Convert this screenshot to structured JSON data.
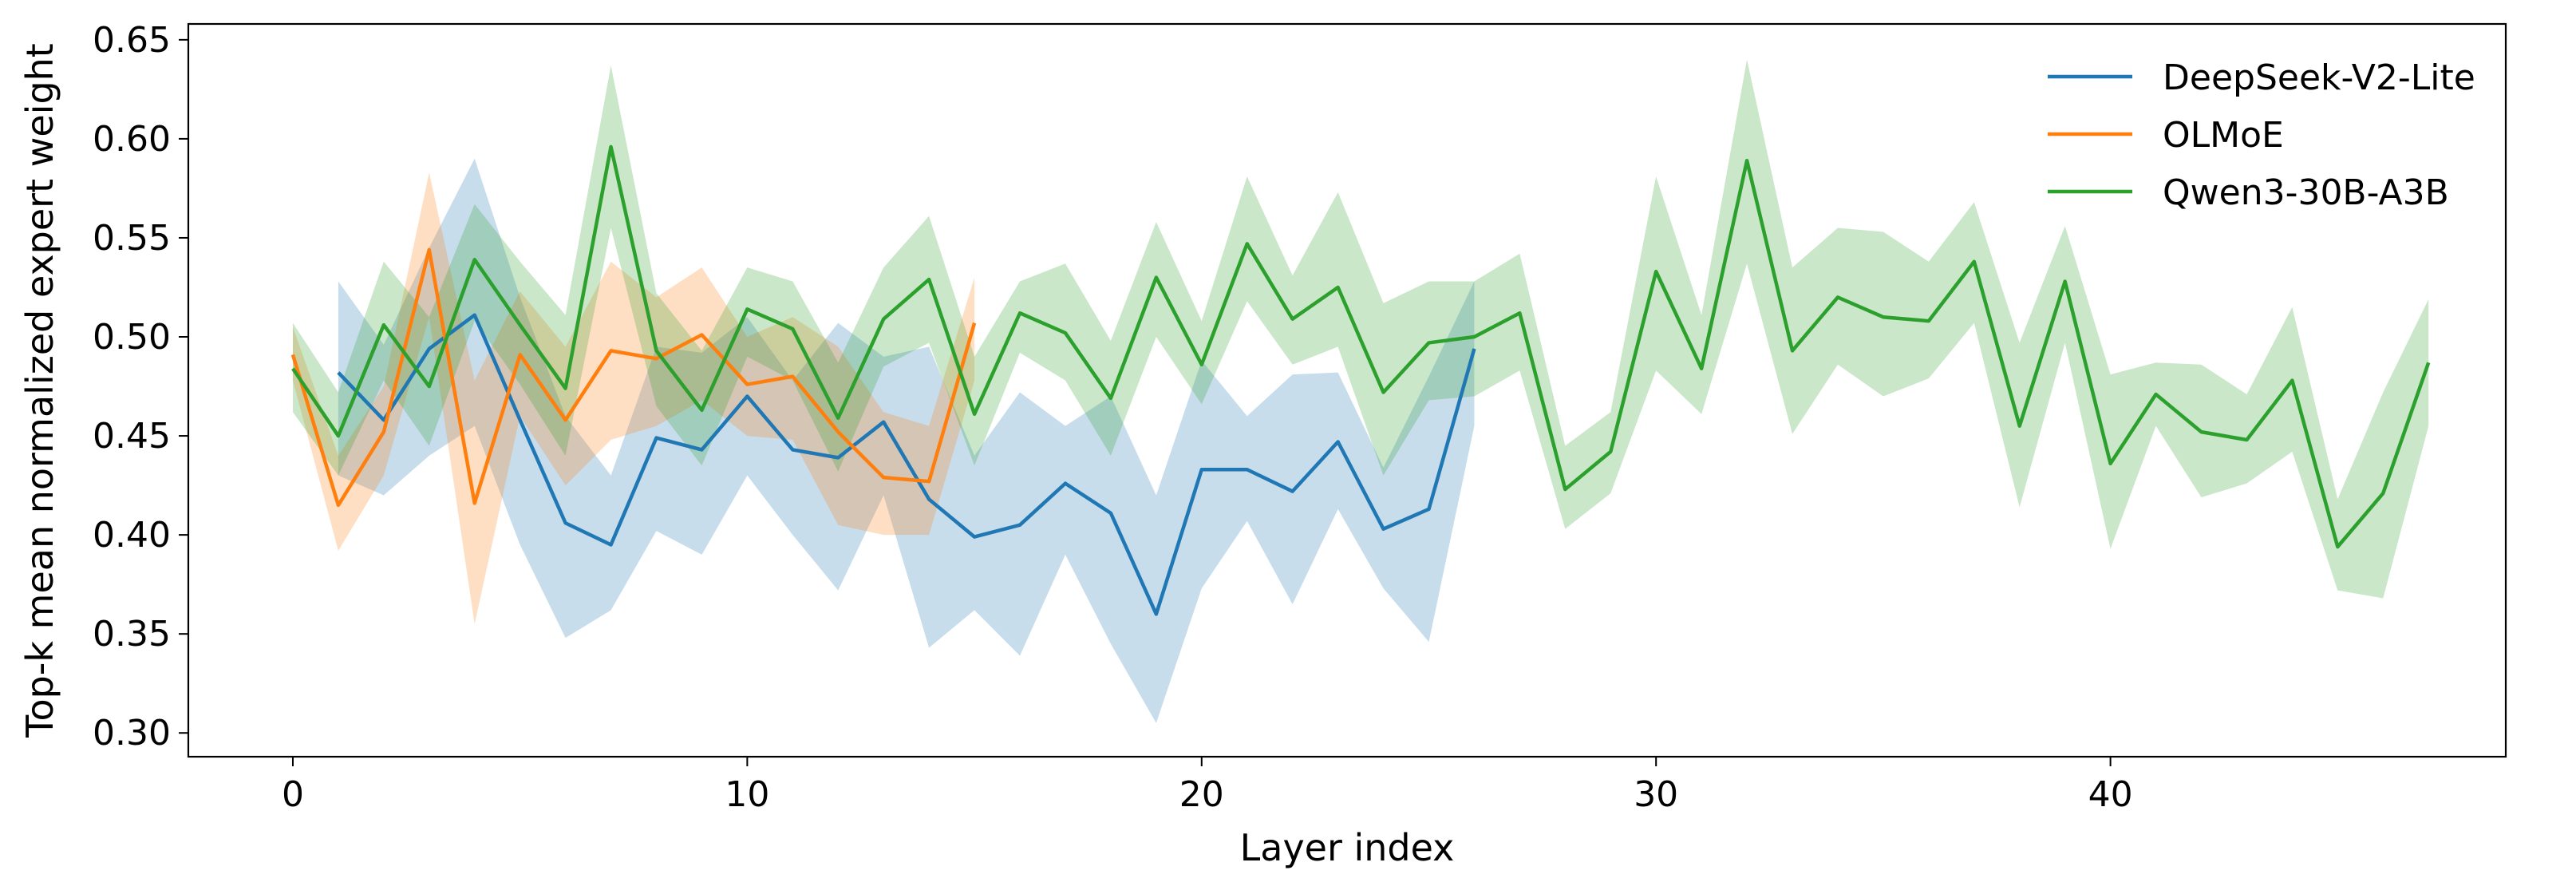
{
  "chart_data": {
    "type": "line",
    "title": "",
    "xlabel": "Layer index",
    "ylabel": "Top-k mean normalized expert weight",
    "xlim": [
      -2.3,
      48.7
    ],
    "ylim": [
      0.288,
      0.658
    ],
    "xticks": [
      0,
      10,
      20,
      30,
      40
    ],
    "yticks": [
      0.3,
      0.35,
      0.4,
      0.45,
      0.5,
      0.55,
      0.6,
      0.65
    ],
    "ytick_labels": [
      "0.30",
      "0.35",
      "0.40",
      "0.45",
      "0.50",
      "0.55",
      "0.60",
      "0.65"
    ],
    "grid": false,
    "legend_position": "top-right",
    "band": "shaded range around each line",
    "series": [
      {
        "name": "DeepSeek-V2-Lite",
        "color": "#1f77b4",
        "x": [
          1,
          2,
          3,
          4,
          5,
          6,
          7,
          8,
          9,
          10,
          11,
          12,
          13,
          14,
          15,
          16,
          17,
          18,
          19,
          20,
          21,
          22,
          23,
          24,
          25,
          26
        ],
        "values": [
          0.482,
          0.458,
          0.494,
          0.511,
          0.458,
          0.406,
          0.395,
          0.449,
          0.443,
          0.47,
          0.443,
          0.439,
          0.457,
          0.418,
          0.399,
          0.405,
          0.426,
          0.411,
          0.36,
          0.433,
          0.433,
          0.422,
          0.447,
          0.403,
          0.413,
          0.494
        ],
        "lower": [
          0.43,
          0.42,
          0.44,
          0.455,
          0.395,
          0.348,
          0.362,
          0.402,
          0.39,
          0.43,
          0.4,
          0.372,
          0.42,
          0.343,
          0.362,
          0.339,
          0.39,
          0.345,
          0.305,
          0.373,
          0.407,
          0.365,
          0.413,
          0.373,
          0.346,
          0.455
        ],
        "upper": [
          0.528,
          0.496,
          0.545,
          0.59,
          0.52,
          0.46,
          0.43,
          0.495,
          0.492,
          0.51,
          0.478,
          0.507,
          0.49,
          0.495,
          0.44,
          0.472,
          0.455,
          0.47,
          0.42,
          0.488,
          0.46,
          0.481,
          0.482,
          0.434,
          0.48,
          0.528
        ]
      },
      {
        "name": "OLMoE",
        "color": "#ff7f0e",
        "x": [
          0,
          1,
          2,
          3,
          4,
          5,
          6,
          7,
          8,
          9,
          10,
          11,
          12,
          13,
          14,
          15
        ],
        "values": [
          0.491,
          0.415,
          0.452,
          0.544,
          0.416,
          0.491,
          0.458,
          0.493,
          0.489,
          0.501,
          0.476,
          0.48,
          0.452,
          0.429,
          0.427,
          0.507
        ],
        "lower": [
          0.478,
          0.392,
          0.43,
          0.51,
          0.355,
          0.46,
          0.425,
          0.448,
          0.455,
          0.468,
          0.45,
          0.448,
          0.405,
          0.4,
          0.4,
          0.478
        ],
        "upper": [
          0.505,
          0.44,
          0.475,
          0.583,
          0.478,
          0.523,
          0.495,
          0.538,
          0.52,
          0.535,
          0.5,
          0.51,
          0.495,
          0.462,
          0.455,
          0.53
        ]
      },
      {
        "name": "Qwen3-30B-A3B",
        "color": "#2ca02c",
        "x": [
          0,
          1,
          2,
          3,
          4,
          5,
          6,
          7,
          8,
          9,
          10,
          11,
          12,
          13,
          14,
          15,
          16,
          17,
          18,
          19,
          20,
          21,
          22,
          23,
          24,
          25,
          26,
          27,
          28,
          29,
          30,
          31,
          32,
          33,
          34,
          35,
          36,
          37,
          38,
          39,
          40,
          41,
          42,
          43,
          44,
          45,
          46,
          47
        ],
        "values": [
          0.484,
          0.45,
          0.506,
          0.475,
          0.539,
          0.506,
          0.474,
          0.596,
          0.493,
          0.463,
          0.514,
          0.504,
          0.459,
          0.509,
          0.529,
          0.461,
          0.512,
          0.502,
          0.469,
          0.53,
          0.486,
          0.547,
          0.509,
          0.525,
          0.472,
          0.497,
          0.5,
          0.512,
          0.423,
          0.442,
          0.533,
          0.484,
          0.589,
          0.493,
          0.52,
          0.51,
          0.508,
          0.538,
          0.455,
          0.528,
          0.436,
          0.471,
          0.452,
          0.448,
          0.478,
          0.394,
          0.421,
          0.487
        ],
        "lower": [
          0.462,
          0.43,
          0.478,
          0.445,
          0.508,
          0.476,
          0.44,
          0.555,
          0.465,
          0.435,
          0.49,
          0.478,
          0.432,
          0.485,
          0.497,
          0.435,
          0.492,
          0.478,
          0.44,
          0.5,
          0.466,
          0.518,
          0.486,
          0.495,
          0.43,
          0.468,
          0.47,
          0.483,
          0.403,
          0.421,
          0.483,
          0.461,
          0.537,
          0.451,
          0.486,
          0.47,
          0.479,
          0.507,
          0.414,
          0.497,
          0.393,
          0.455,
          0.419,
          0.426,
          0.442,
          0.372,
          0.368,
          0.455
        ],
        "upper": [
          0.507,
          0.472,
          0.538,
          0.51,
          0.567,
          0.538,
          0.511,
          0.637,
          0.522,
          0.493,
          0.535,
          0.528,
          0.487,
          0.535,
          0.561,
          0.49,
          0.528,
          0.537,
          0.498,
          0.558,
          0.508,
          0.581,
          0.531,
          0.573,
          0.517,
          0.528,
          0.528,
          0.542,
          0.445,
          0.462,
          0.581,
          0.511,
          0.64,
          0.535,
          0.555,
          0.553,
          0.538,
          0.568,
          0.497,
          0.556,
          0.481,
          0.487,
          0.486,
          0.471,
          0.515,
          0.418,
          0.472,
          0.519
        ]
      }
    ]
  }
}
